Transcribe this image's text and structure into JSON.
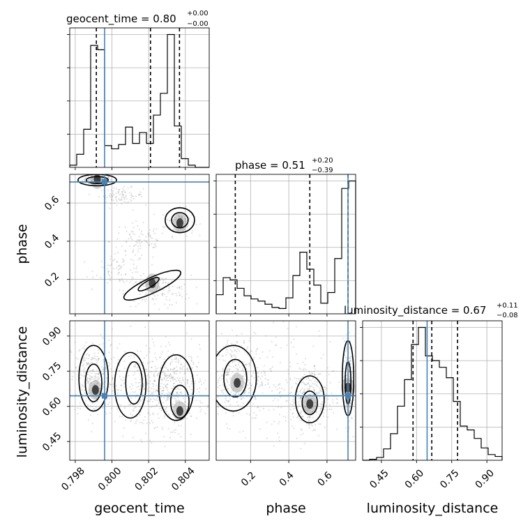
{
  "chart_data": {
    "type": "corner",
    "parameters": [
      "geocent_time",
      "phase",
      "luminosity_distance"
    ],
    "truths": {
      "geocent_time": 0.7996,
      "phase": 0.71,
      "luminosity_distance": 0.645
    },
    "titles": [
      {
        "param": "geocent_time",
        "text": "geocent_time = 0.80",
        "sup": "+0.00",
        "sub": "−0.00"
      },
      {
        "param": "phase",
        "text": "phase = 0.51",
        "sup": "+0.20",
        "sub": "−0.39"
      },
      {
        "param": "luminosity_distance",
        "text": "luminosity_distance = 0.67",
        "sup": "+0.11",
        "sub": "−0.08"
      }
    ],
    "axis_labels": {
      "geocent_time": "geocent_time",
      "phase": "phase",
      "luminosity_distance": "luminosity_distance"
    },
    "ranges": {
      "geocent_time": [
        0.7977,
        0.8053
      ],
      "phase": [
        0.02,
        0.75
      ],
      "luminosity_distance": [
        0.37,
        0.965
      ]
    },
    "ticks": {
      "geocent_time": [
        "0.798",
        "0.800",
        "0.802",
        "0.804"
      ],
      "phase": [
        "0.2",
        "0.4",
        "0.6"
      ],
      "luminosity_distance": [
        "0.45",
        "0.60",
        "0.75",
        "0.90"
      ]
    },
    "marginals": {
      "geocent_time": {
        "edges": [
          0.7977,
          0.79808,
          0.79846,
          0.79884,
          0.79922,
          0.7996,
          0.79998,
          0.80036,
          0.80074,
          0.80112,
          0.8015,
          0.80188,
          0.80226,
          0.80264,
          0.80302,
          0.8034,
          0.80378,
          0.80416,
          0.80454,
          0.80492,
          0.8053
        ],
        "counts": [
          2,
          12,
          35,
          112,
          108,
          20,
          17,
          21,
          37,
          22,
          32,
          22,
          48,
          68,
          122,
          38,
          8,
          2,
          0,
          0
        ],
        "quantiles": [
          0.79915,
          0.8021,
          0.80368
        ]
      },
      "phase": {
        "edges": [
          0.02,
          0.0565,
          0.093,
          0.1295,
          0.166,
          0.2025,
          0.239,
          0.2755,
          0.312,
          0.3485,
          0.385,
          0.4215,
          0.458,
          0.4945,
          0.531,
          0.5675,
          0.604,
          0.6405,
          0.677,
          0.7135,
          0.75
        ],
        "counts": [
          18,
          34,
          32,
          24,
          17,
          14,
          12,
          9,
          6,
          5,
          15,
          36,
          58,
          42,
          27,
          10,
          20,
          52,
          118,
          125
        ],
        "quantiles": [
          0.12,
          0.51,
          0.71
        ]
      },
      "luminosity_distance": {
        "edges": [
          0.37,
          0.39975,
          0.4295,
          0.45925,
          0.489,
          0.51875,
          0.5485,
          0.57825,
          0.608,
          0.63775,
          0.6675,
          0.69725,
          0.727,
          0.75675,
          0.7865,
          0.81625,
          0.846,
          0.87575,
          0.9055,
          0.93525,
          0.965
        ],
        "counts": [
          0,
          1,
          3,
          12,
          28,
          57,
          85,
          122,
          140,
          110,
          105,
          98,
          87,
          62,
          36,
          32,
          23,
          13,
          6,
          4
        ],
        "quantiles": [
          0.585,
          0.665,
          0.775
        ]
      }
    },
    "grid": true
  }
}
